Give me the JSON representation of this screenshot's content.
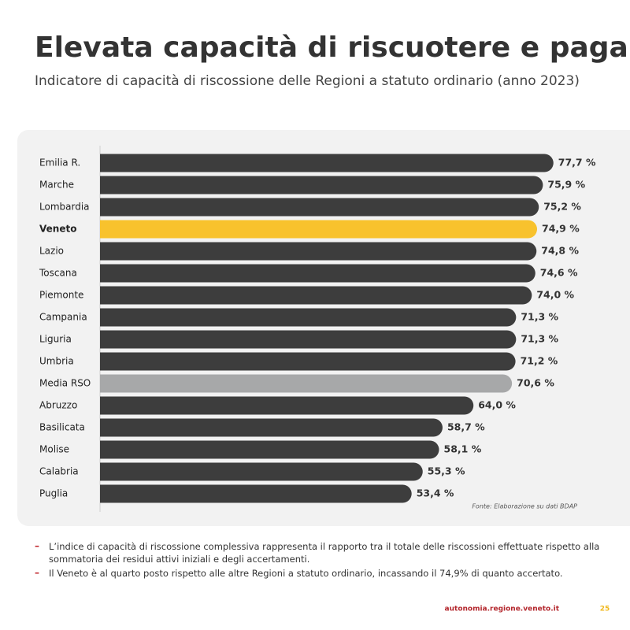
{
  "title": "Elevata capacità di riscuotere e pagare",
  "subtitle": "Indicatore di capacità di riscossione delle Regioni a statuto ordinario (anno 2023)",
  "chart_data": {
    "type": "bar",
    "orientation": "horizontal",
    "categories": [
      "Emilia R.",
      "Marche",
      "Lombardia",
      "Veneto",
      "Lazio",
      "Toscana",
      "Piemonte",
      "Campania",
      "Liguria",
      "Umbria",
      "Media RSO",
      "Abruzzo",
      "Basilicata",
      "Molise",
      "Calabria",
      "Puglia"
    ],
    "values": [
      77.7,
      75.9,
      75.2,
      74.9,
      74.8,
      74.6,
      74.0,
      71.3,
      71.3,
      71.2,
      70.6,
      64.0,
      58.7,
      58.1,
      55.3,
      53.4
    ],
    "value_labels": [
      "77,7 %",
      "75,9 %",
      "75,2 %",
      "74,9 %",
      "74,8 %",
      "74,6 %",
      "74,0 %",
      "71,3 %",
      "71,3 %",
      "71,2 %",
      "70,6 %",
      "64,0 %",
      "58,7 %",
      "58,1 %",
      "55,3 %",
      "53,4 %"
    ],
    "colors": [
      "#3d3d3d",
      "#3d3d3d",
      "#3d3d3d",
      "#f8c22d",
      "#3d3d3d",
      "#3d3d3d",
      "#3d3d3d",
      "#3d3d3d",
      "#3d3d3d",
      "#3d3d3d",
      "#a7a8a9",
      "#3d3d3d",
      "#3d3d3d",
      "#3d3d3d",
      "#3d3d3d",
      "#3d3d3d"
    ],
    "label_bold": [
      false,
      false,
      false,
      true,
      false,
      false,
      false,
      false,
      false,
      false,
      false,
      false,
      false,
      false,
      false,
      false
    ],
    "source": "Fonte: Elaborazione su dati BDAP"
  },
  "notes": [
    "L’indice di capacità di riscossione complessiva rappresenta il rapporto tra il totale delle riscossioni effettuate rispetto alla sommatoria dei residui attivi iniziali e degli accertamenti.",
    "Il Veneto è al quarto posto rispetto alle altre Regioni a statuto ordinario, incassando il 74,9% di quanto accertato."
  ],
  "footer": {
    "url": "autonomia.regione.veneto.it",
    "page": "25"
  }
}
